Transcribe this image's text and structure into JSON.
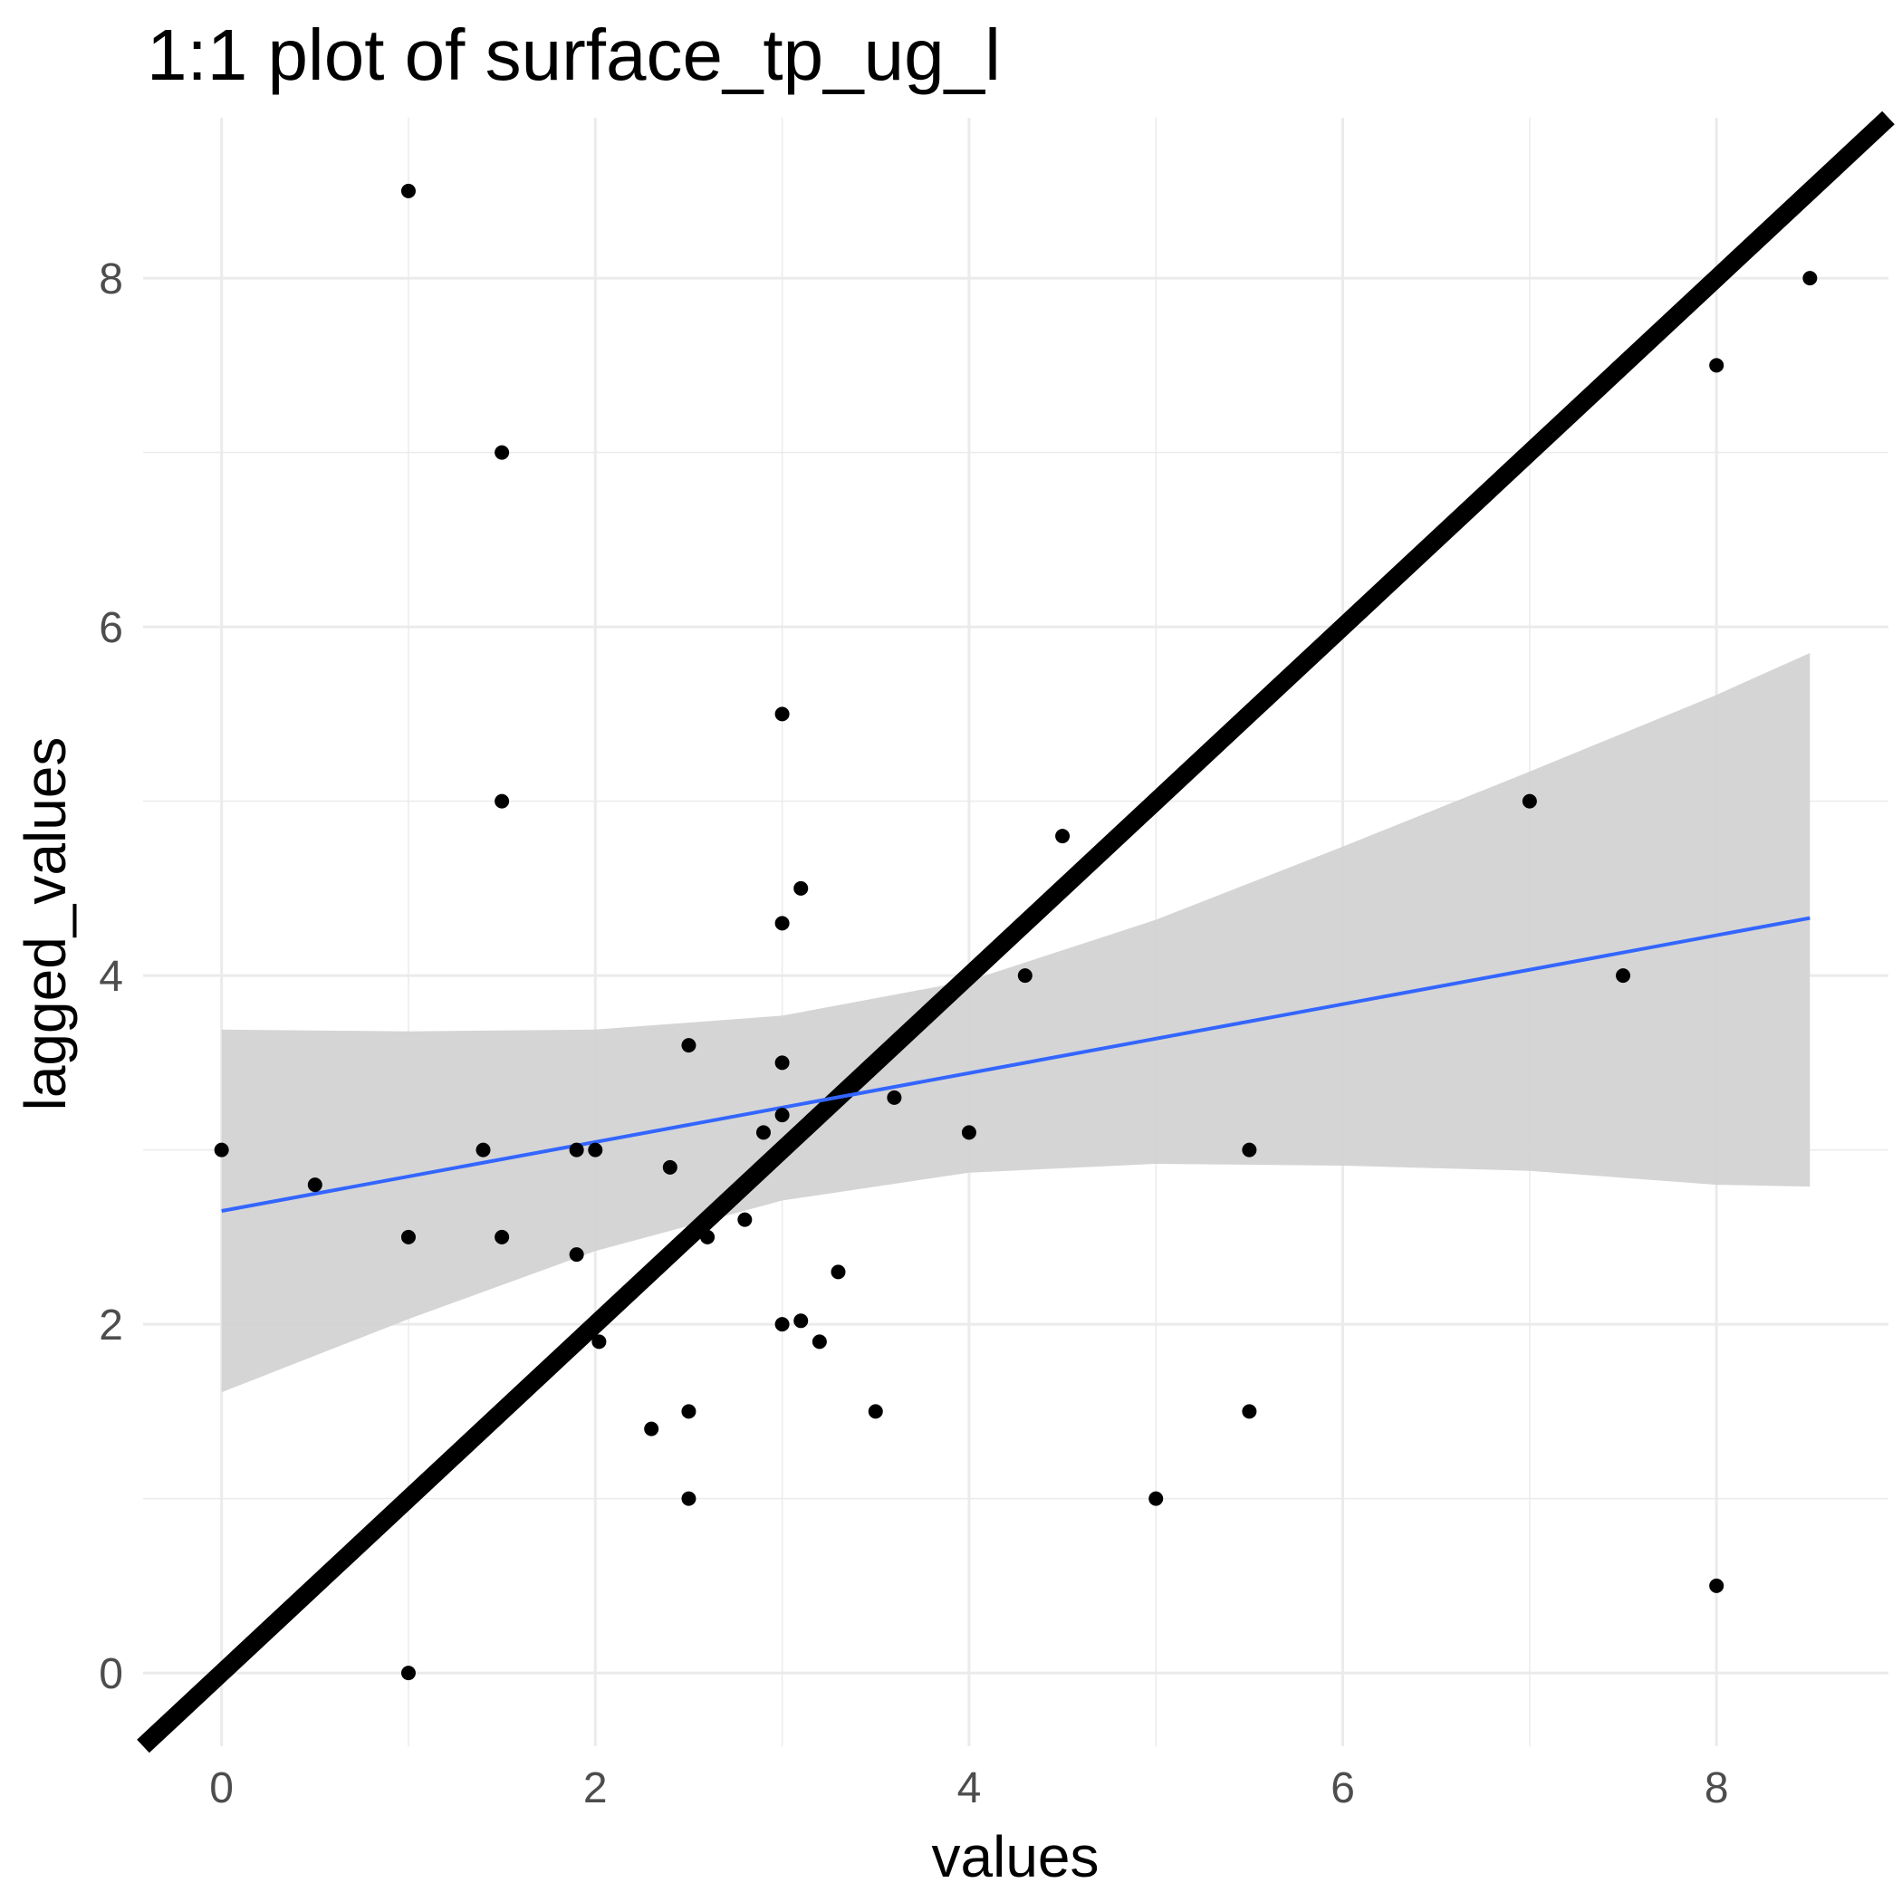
{
  "chart_data": {
    "type": "scatter",
    "title": "1:1 plot of surface_tp_ug_l",
    "xlabel": "values",
    "ylabel": "lagged_values",
    "xlim": [
      -0.42,
      8.92
    ],
    "ylim": [
      -0.42,
      8.92
    ],
    "x_ticks": [
      "0",
      "2",
      "4",
      "6",
      "8"
    ],
    "y_ticks": [
      "0",
      "2",
      "4",
      "6",
      "8"
    ],
    "grid": true,
    "colors": {
      "points": "#000000",
      "identity_line": "#000000",
      "fit_line": "#3366ff",
      "confidence_band": "#d3d3d3",
      "grid": "#ebebeb"
    },
    "series": [
      {
        "type": "scatter",
        "x": [
          1.0,
          1.5,
          8.5,
          8.0,
          1.5,
          3.0,
          7.0,
          4.5,
          3.1,
          3.0,
          4.3,
          7.5,
          2.5,
          3.0,
          3.6,
          3.0,
          0.0,
          0.5,
          1.4,
          1.9,
          2.0,
          2.4,
          2.9,
          4.0,
          5.5,
          2.8,
          1.0,
          1.5,
          2.6,
          1.9,
          3.3,
          3.0,
          3.1,
          2.02,
          3.2,
          2.3,
          2.5,
          3.5,
          5.5,
          2.5,
          5.0,
          8.0,
          1.0
        ],
        "y": [
          8.5,
          7.0,
          8.0,
          7.5,
          5.0,
          5.5,
          5.0,
          4.8,
          4.5,
          4.3,
          4.0,
          4.0,
          3.6,
          3.5,
          3.3,
          3.2,
          3.0,
          2.8,
          3.0,
          3.0,
          3.0,
          2.9,
          3.1,
          3.1,
          3.0,
          2.6,
          2.5,
          2.5,
          2.5,
          2.4,
          2.3,
          2.0,
          2.02,
          1.9,
          1.9,
          1.4,
          1.5,
          1.5,
          1.5,
          1.0,
          1.0,
          0.5,
          0.0
        ]
      },
      {
        "type": "line",
        "x": [
          -0.42,
          8.92
        ],
        "y": [
          -0.42,
          8.92
        ]
      },
      {
        "type": "line",
        "x": [
          0.0,
          8.5
        ],
        "y": [
          2.65,
          4.33
        ]
      },
      {
        "type": "area",
        "x": [
          0.0,
          1.0,
          2.0,
          3.0,
          4.0,
          5.0,
          6.0,
          7.0,
          8.0,
          8.5
        ],
        "y_upper": [
          3.69,
          3.68,
          3.69,
          3.77,
          3.97,
          4.32,
          4.74,
          5.17,
          5.61,
          5.85
        ],
        "y_lower": [
          1.61,
          2.03,
          2.42,
          2.71,
          2.87,
          2.92,
          2.91,
          2.88,
          2.8,
          2.79
        ]
      }
    ]
  }
}
